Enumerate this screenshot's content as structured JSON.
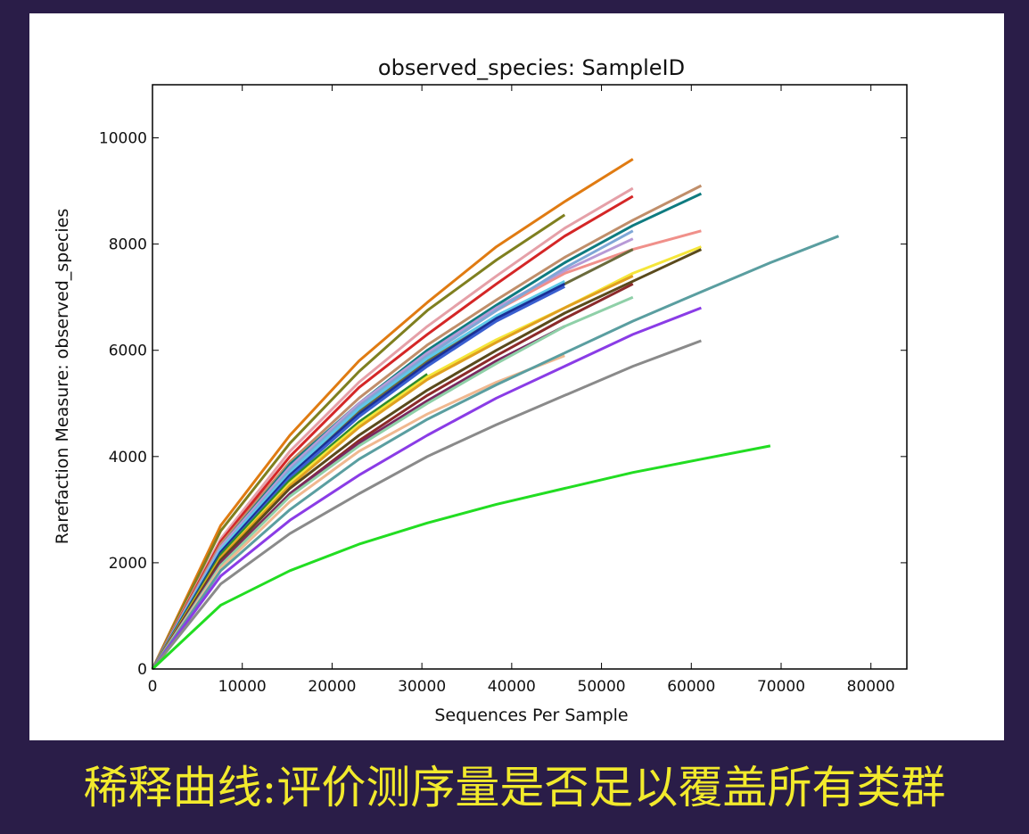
{
  "colors": {
    "background": "#2a1d48",
    "panel": "#ffffff",
    "caption": "#f2ea2c"
  },
  "caption": "稀释曲线:评价测序量是否足以覆盖所有类群",
  "chart_data": {
    "type": "line",
    "title": "observed_species: SampleID",
    "xlabel": "Sequences Per Sample",
    "ylabel": "Rarefaction Measure: observed_species",
    "xlim": [
      0,
      84000
    ],
    "ylim": [
      0,
      11000
    ],
    "xticks": [
      0,
      10000,
      20000,
      30000,
      40000,
      50000,
      60000,
      70000,
      80000
    ],
    "yticks": [
      0,
      2000,
      4000,
      6000,
      8000,
      10000
    ],
    "xtick_labels": [
      "0",
      "10000",
      "20000",
      "30000",
      "40000",
      "50000",
      "60000",
      "70000",
      "80000"
    ],
    "ytick_labels": [
      "0",
      "2000",
      "4000",
      "6000",
      "8000",
      "10000"
    ],
    "grid": false,
    "legend": "none",
    "series": [
      {
        "color": "#e07b12",
        "x": [
          0,
          7600,
          15300,
          23000,
          30600,
          38300,
          45900,
          53500
        ],
        "y": [
          0,
          2700,
          4400,
          5800,
          6900,
          7950,
          8800,
          9600
        ]
      },
      {
        "color": "#7f7f1f",
        "x": [
          0,
          7600,
          15300,
          23000,
          30600,
          38300,
          45900
        ],
        "y": [
          0,
          2600,
          4250,
          5600,
          6750,
          7700,
          8550
        ]
      },
      {
        "color": "#e5a0a8",
        "x": [
          0,
          7600,
          15300,
          23000,
          30600,
          38300,
          45900,
          53500
        ],
        "y": [
          0,
          2450,
          4100,
          5400,
          6450,
          7400,
          8300,
          9050
        ]
      },
      {
        "color": "#d42626",
        "x": [
          0,
          7600,
          15300,
          23000,
          30600,
          38300,
          45900,
          53500
        ],
        "y": [
          0,
          2400,
          4000,
          5300,
          6300,
          7250,
          8150,
          8900
        ]
      },
      {
        "color": "#c08e6a",
        "x": [
          0,
          7600,
          15300,
          23000,
          30600,
          38300,
          45900,
          53500,
          61100
        ],
        "y": [
          0,
          2350,
          3900,
          5100,
          6100,
          6950,
          7750,
          8450,
          9100
        ]
      },
      {
        "color": "#0e7b80",
        "x": [
          0,
          7600,
          15300,
          23000,
          30600,
          38300,
          45900,
          53500,
          61100
        ],
        "y": [
          0,
          2300,
          3850,
          5000,
          6000,
          6850,
          7650,
          8350,
          8950
        ]
      },
      {
        "color": "#f0908a",
        "x": [
          0,
          7600,
          15300,
          23000,
          30600,
          38300,
          45900,
          53500,
          61100
        ],
        "y": [
          0,
          2250,
          3750,
          4950,
          5900,
          6750,
          7450,
          7900,
          8250
        ]
      },
      {
        "color": "#b79ad6",
        "x": [
          0,
          7600,
          15300,
          23000,
          30600,
          38300,
          45900,
          53500
        ],
        "y": [
          0,
          2300,
          3800,
          5000,
          5950,
          6800,
          7500,
          8100
        ]
      },
      {
        "color": "#7fa7d6",
        "x": [
          0,
          7600,
          15300,
          23000,
          30600,
          38300,
          45900,
          53500
        ],
        "y": [
          0,
          2250,
          3750,
          4950,
          5900,
          6750,
          7550,
          8250
        ]
      },
      {
        "color": "#6b6b3c",
        "x": [
          0,
          7600,
          15300,
          23000,
          30600,
          38300,
          45900,
          53500
        ],
        "y": [
          0,
          2200,
          3700,
          4850,
          5800,
          6600,
          7250,
          7900
        ]
      },
      {
        "color": "#5ec8e8",
        "x": [
          0,
          7600,
          15300,
          23000,
          30600,
          38300,
          45900
        ],
        "y": [
          0,
          2250,
          3700,
          4900,
          5850,
          6650,
          7300
        ]
      },
      {
        "color": "#1a2f96",
        "x": [
          0,
          7600,
          15300,
          23000,
          30600,
          38300,
          45900
        ],
        "y": [
          0,
          2200,
          3650,
          4800,
          5750,
          6600,
          7250
        ]
      },
      {
        "color": "#3a5fd0",
        "x": [
          0,
          7600,
          15300,
          23000,
          30600,
          38300,
          45900
        ],
        "y": [
          0,
          2150,
          3600,
          4750,
          5700,
          6550,
          7200
        ]
      },
      {
        "color": "#2e8c2e",
        "x": [
          0,
          7600,
          15300,
          23000,
          30600
        ],
        "y": [
          0,
          2150,
          3550,
          4650,
          5550
        ]
      },
      {
        "color": "#f5e63a",
        "x": [
          0,
          7600,
          15300,
          23000,
          30600,
          38300,
          45900,
          53500,
          61100
        ],
        "y": [
          0,
          2100,
          3500,
          4600,
          5500,
          6200,
          6800,
          7450,
          7950
        ]
      },
      {
        "color": "#e0a020",
        "x": [
          0,
          7600,
          15300,
          23000,
          30600,
          38300,
          45900,
          53500
        ],
        "y": [
          0,
          2100,
          3450,
          4550,
          5450,
          6150,
          6800,
          7400
        ]
      },
      {
        "color": "#5a4a1c",
        "x": [
          0,
          7600,
          15300,
          23000,
          30600,
          38300,
          45900,
          53500,
          61100
        ],
        "y": [
          0,
          2050,
          3400,
          4400,
          5250,
          6000,
          6700,
          7300,
          7900
        ]
      },
      {
        "color": "#8b2a2a",
        "x": [
          0,
          7600,
          15300,
          23000,
          30600,
          38300,
          45900,
          53500
        ],
        "y": [
          0,
          2000,
          3300,
          4300,
          5150,
          5900,
          6600,
          7250
        ]
      },
      {
        "color": "#7a2860",
        "x": [
          0,
          7600,
          15300,
          23000,
          30600,
          38300,
          45900
        ],
        "y": [
          0,
          2000,
          3300,
          4250,
          5050,
          5800,
          6450
        ]
      },
      {
        "color": "#8fd0a8",
        "x": [
          0,
          7600,
          15300,
          23000,
          30600,
          38300,
          45900,
          53500
        ],
        "y": [
          0,
          1950,
          3250,
          4200,
          5000,
          5750,
          6450,
          7000
        ]
      },
      {
        "color": "#f0b890",
        "x": [
          0,
          7600,
          15300,
          23000,
          30600,
          38300,
          45900
        ],
        "y": [
          0,
          1900,
          3150,
          4100,
          4800,
          5400,
          5900
        ]
      },
      {
        "color": "#5a9ea0",
        "x": [
          0,
          7600,
          15300,
          23000,
          30600,
          38300,
          45900,
          53500,
          61100,
          68800,
          76400
        ],
        "y": [
          0,
          1850,
          3000,
          3950,
          4700,
          5350,
          5950,
          6550,
          7100,
          7650,
          8150
        ]
      },
      {
        "color": "#8a3ce6",
        "x": [
          0,
          7600,
          15300,
          23000,
          30600,
          38300,
          45900,
          53500,
          61100
        ],
        "y": [
          0,
          1750,
          2800,
          3650,
          4400,
          5100,
          5700,
          6300,
          6800
        ]
      },
      {
        "color": "#8a8a8a",
        "x": [
          0,
          7600,
          15300,
          23000,
          30600,
          38300,
          45900,
          53500,
          61100
        ],
        "y": [
          0,
          1600,
          2550,
          3300,
          4000,
          4600,
          5150,
          5700,
          6180
        ]
      },
      {
        "color": "#22dd22",
        "x": [
          0,
          7600,
          15300,
          23000,
          30600,
          38300,
          45900,
          53500,
          61100,
          68800
        ],
        "y": [
          0,
          1200,
          1850,
          2350,
          2750,
          3100,
          3400,
          3700,
          3950,
          4200
        ]
      }
    ]
  }
}
